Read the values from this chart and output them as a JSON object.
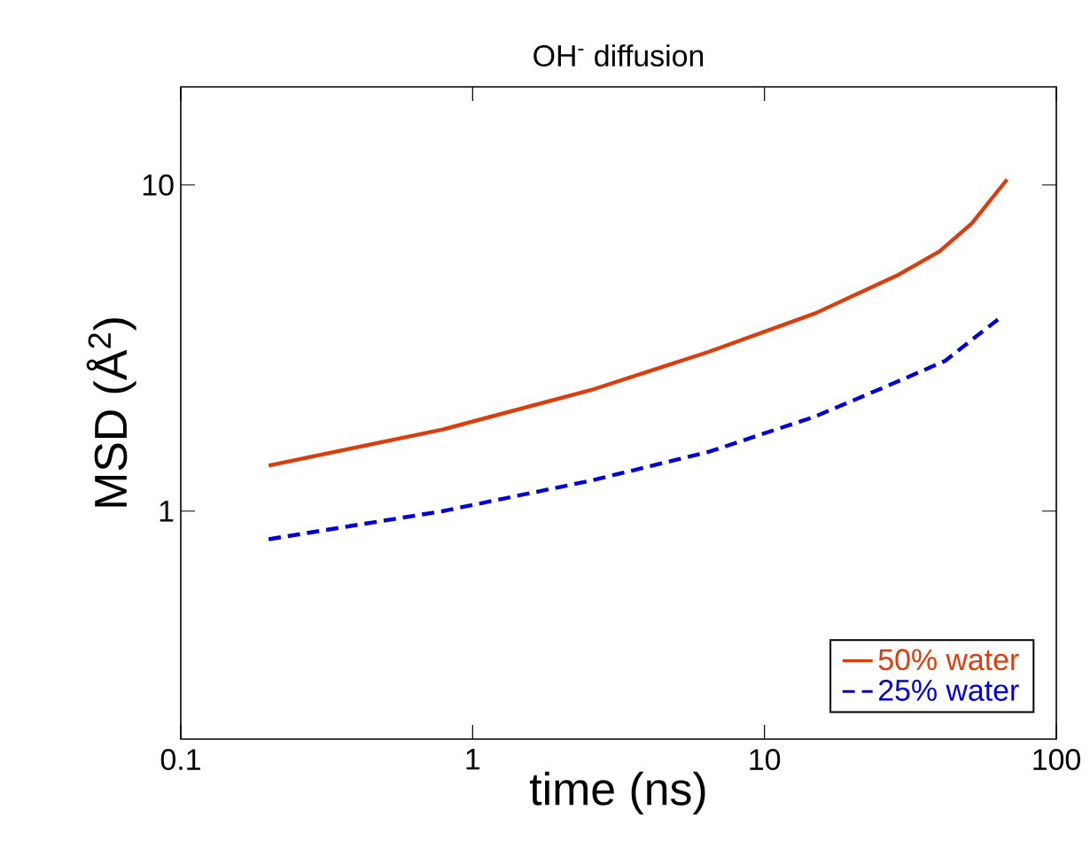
{
  "chart_data": {
    "type": "line",
    "title": "OH$^{-}$ diffusion",
    "xlabel": "time (ns)",
    "ylabel": "MSD (Å$^{2}$)",
    "log": "xy",
    "xlim": [
      0.1,
      100
    ],
    "ylim": [
      0.2,
      20
    ],
    "xticks": [
      0.1,
      1,
      10,
      100
    ],
    "yticks": [
      1,
      10
    ],
    "legend": "bottom right",
    "grid": false,
    "series": [
      {
        "name": "50% water",
        "color": "#dd3d0a",
        "line_style": "solid",
        "x": [
          0.2,
          0.79,
          2.54,
          6.44,
          14.9,
          28.7,
          39.7,
          51.3,
          67.8
        ],
        "values": [
          1.38,
          1.78,
          2.35,
          3.08,
          4.04,
          5.3,
          6.25,
          7.62,
          10.4
        ]
      },
      {
        "name": "25% water",
        "color": "#0000dd",
        "line_style": "dashed",
        "x": [
          0.2,
          0.79,
          2.54,
          6.44,
          14.9,
          28.7,
          41.6,
          51.3,
          63.1
        ],
        "values": [
          0.82,
          1.0,
          1.24,
          1.52,
          1.95,
          2.5,
          2.89,
          3.35,
          3.87
        ]
      }
    ]
  }
}
